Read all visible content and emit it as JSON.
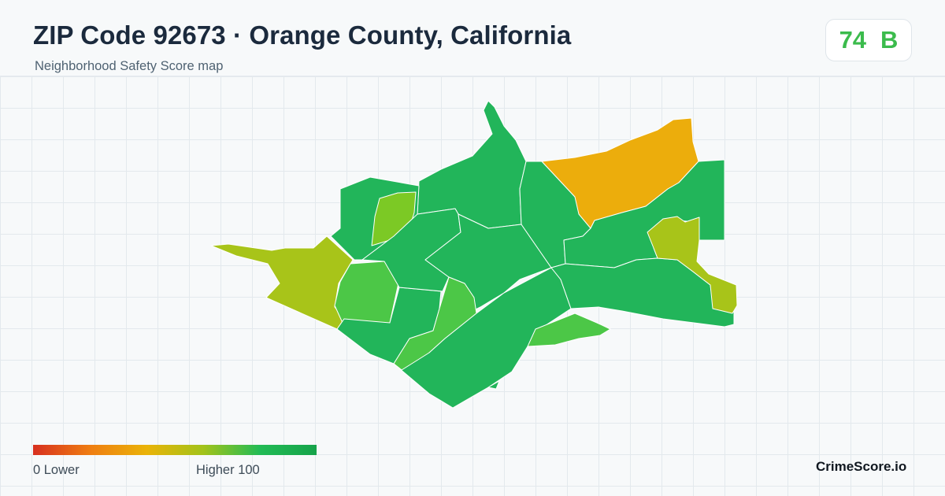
{
  "header": {
    "title": "ZIP Code 92673 · Orange County, California",
    "subtitle": "Neighborhood Safety Score map"
  },
  "score_badge": {
    "score": "74",
    "grade": "B",
    "color": "#3bbb4c"
  },
  "legend": {
    "low_label": "0  Lower",
    "high_label": "Higher  100",
    "gradient_colors": [
      "#d7301f",
      "#ef7d12",
      "#eab308",
      "#a3c31a",
      "#22bb55",
      "#16a34a"
    ]
  },
  "brand": "CrimeScore.io",
  "map": {
    "region_colors": {
      "dark_green": "#22b55a",
      "light_green": "#4cc747",
      "lime": "#7cc925",
      "yellow_green": "#a8c419",
      "orange": "#ecad0c"
    },
    "regions": [
      {
        "name": "north-spur",
        "color_key": "dark_green"
      },
      {
        "name": "north-central",
        "color_key": "dark_green"
      },
      {
        "name": "northwest",
        "color_key": "dark_green"
      },
      {
        "name": "northwest-inner",
        "color_key": "lime"
      },
      {
        "name": "west-arm",
        "color_key": "yellow_green"
      },
      {
        "name": "west-center",
        "color_key": "light_green"
      },
      {
        "name": "west-south",
        "color_key": "dark_green"
      },
      {
        "name": "center",
        "color_key": "dark_green"
      },
      {
        "name": "center-west",
        "color_key": "dark_green"
      },
      {
        "name": "center-strip",
        "color_key": "light_green"
      },
      {
        "name": "south",
        "color_key": "dark_green"
      },
      {
        "name": "southeast-lobe",
        "color_key": "light_green"
      },
      {
        "name": "northeast",
        "color_key": "orange"
      },
      {
        "name": "east-center",
        "color_key": "dark_green"
      },
      {
        "name": "east-block",
        "color_key": "dark_green"
      },
      {
        "name": "east-arm",
        "color_key": "yellow_green"
      },
      {
        "name": "southeast-tail",
        "color_key": "dark_green"
      }
    ]
  }
}
